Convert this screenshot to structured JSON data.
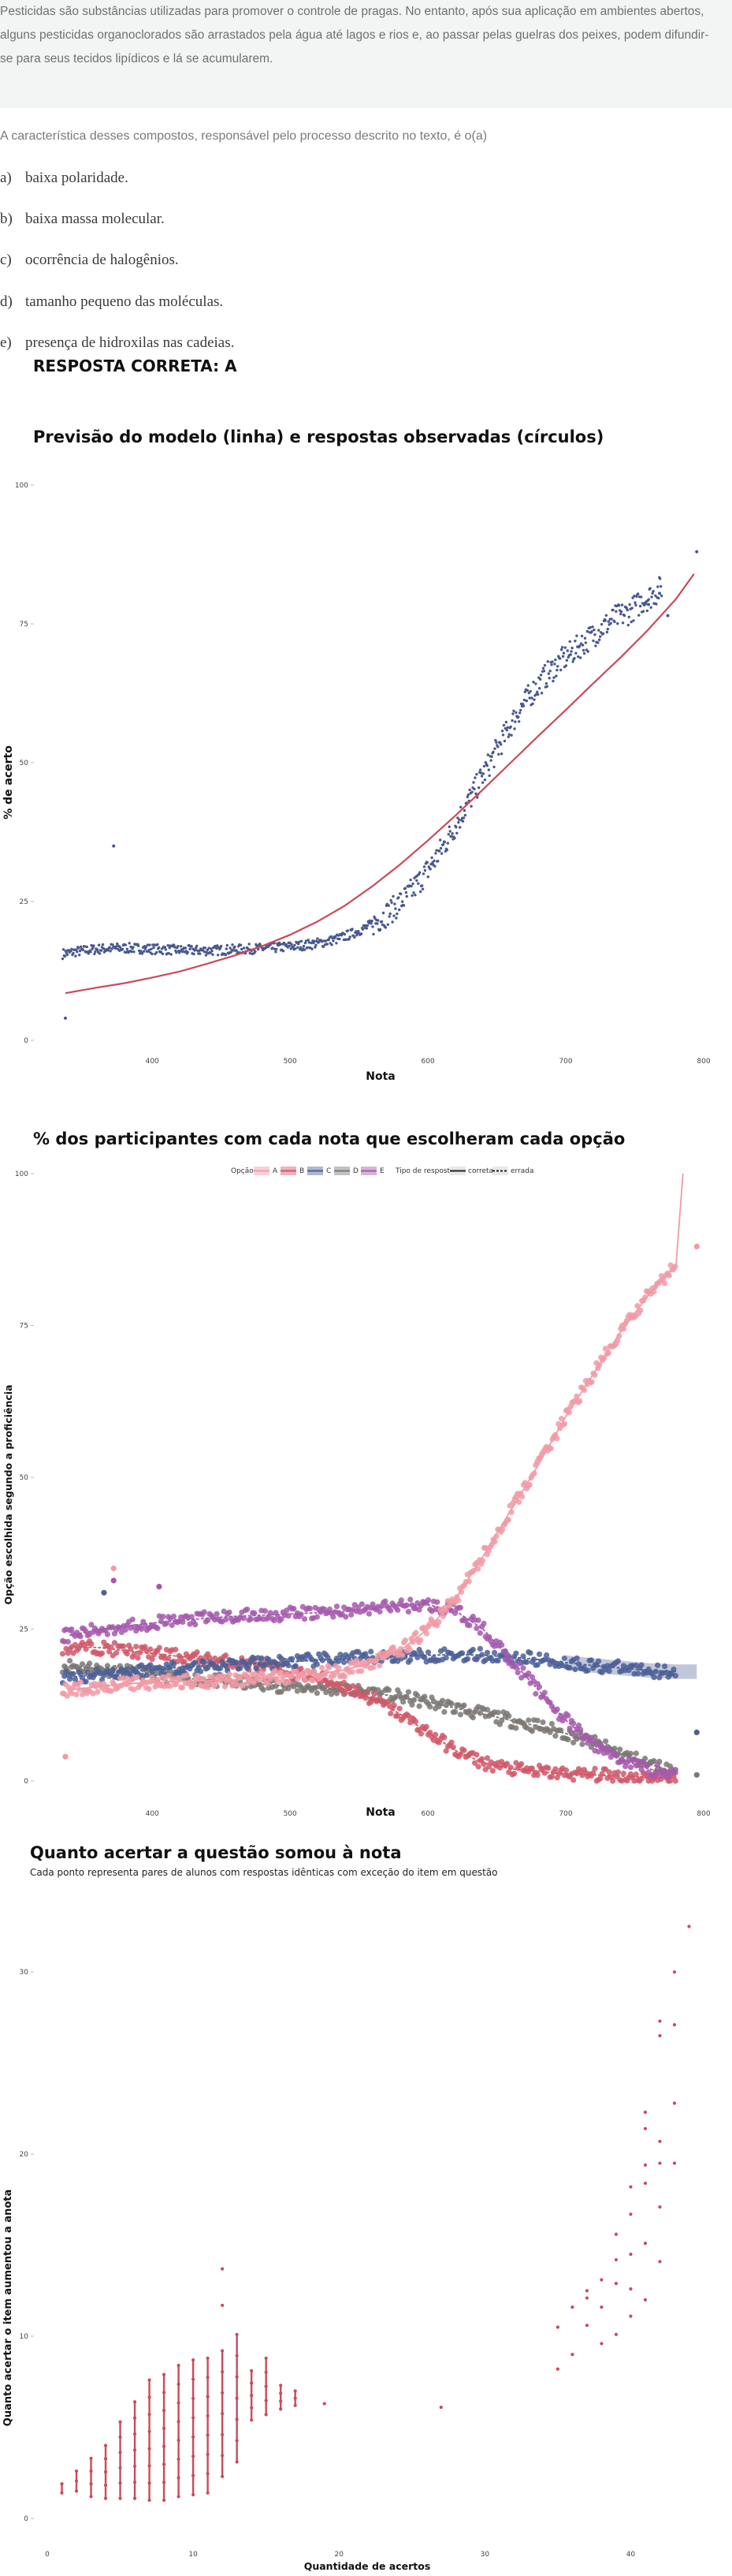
{
  "question": {
    "stem_lines": [
      "Pesticidas são substâncias utilizadas para promover o controle de pragas. No entanto, após sua aplicação em ambientes abertos,",
      "alguns pesticidas organoclorados são arrastados pela água até lagos e rios e, ao passar pelas guelras dos peixes, podem difundir-",
      "se para seus tecidos lipídicos e lá se acumularem."
    ],
    "prompt": "A característica desses compostos, responsável pelo processo descrito no texto, é o(a)",
    "options": [
      {
        "letter": "a)",
        "text": "baixa polaridade."
      },
      {
        "letter": "b)",
        "text": "baixa massa molecular."
      },
      {
        "letter": "c)",
        "text": "ocorrência de halogênios."
      },
      {
        "letter": "d)",
        "text": "tamanho pequeno das moléculas."
      },
      {
        "letter": "e)",
        "text": "presença de hidroxilas nas cadeias."
      }
    ],
    "correct_answer": "RESPOSTA CORRETA: A"
  },
  "colors": {
    "A": "#f19aa5",
    "B": "#d05868",
    "C": "#4c5f97",
    "D": "#7b7774",
    "E": "#a559ad",
    "model": "#c94b5a",
    "points": "#49588f"
  },
  "chart_data": [
    {
      "type": "scatter",
      "title": "Previsão do modelo (linha) e respostas observadas (círculos)",
      "xlabel": "Nota",
      "ylabel": "% de acerto",
      "xlim": [
        325,
        800
      ],
      "ylim": [
        0,
        100
      ],
      "xticks": [
        "400",
        "500",
        "600",
        "700",
        "800"
      ],
      "yticks": [
        "0",
        "25",
        "50",
        "75",
        "100"
      ],
      "observed": {
        "x": [
          333,
          345,
          355,
          365,
          375,
          385,
          395,
          405,
          415,
          425,
          435,
          445,
          455,
          465,
          475,
          485,
          495,
          505,
          515,
          525,
          535,
          545,
          555,
          565,
          575,
          585,
          595,
          605,
          615,
          625,
          635,
          645,
          655,
          665,
          675,
          685,
          695,
          705,
          715,
          725,
          735,
          745,
          755,
          765,
          795
        ],
        "y": [
          15.5,
          16.0,
          16.3,
          16.5,
          16.6,
          16.6,
          16.5,
          16.4,
          16.3,
          16.2,
          16.2,
          16.2,
          16.3,
          16.4,
          16.5,
          16.6,
          16.8,
          17.0,
          17.3,
          17.7,
          18.3,
          19.2,
          20.3,
          21.8,
          23.7,
          26.0,
          29.0,
          32.5,
          36.5,
          41.0,
          45.5,
          50.0,
          54.5,
          59.0,
          62.5,
          65.5,
          68.0,
          70.0,
          72.0,
          74.0,
          76.0,
          77.0,
          79.0,
          80.5,
          88.0
        ]
      },
      "outliers": {
        "x": [
          337,
          372
        ],
        "y": [
          4,
          35
        ]
      },
      "model": {
        "x": [
          337,
          360,
          380,
          400,
          420,
          440,
          460,
          480,
          500,
          520,
          540,
          560,
          580,
          600,
          620,
          640,
          660,
          680,
          700,
          720,
          740,
          760,
          780,
          793
        ],
        "y": [
          8.5,
          9.5,
          10.3,
          11.3,
          12.4,
          13.8,
          15.3,
          17.0,
          19.0,
          21.4,
          24.3,
          27.8,
          31.7,
          36.0,
          40.5,
          45.2,
          50.0,
          54.8,
          59.5,
          64.3,
          69.0,
          74.0,
          79.5,
          84.0
        ]
      }
    },
    {
      "type": "scatter",
      "title": "% dos participantes com cada nota que escolheram cada opção",
      "xlabel": "Nota",
      "ylabel": "Opção escolhida segundo a proficiência",
      "xlim": [
        325,
        800
      ],
      "ylim": [
        0,
        100
      ],
      "xticks": [
        "400",
        "500",
        "600",
        "700",
        "800"
      ],
      "yticks": [
        "0",
        "25",
        "50",
        "75",
        "100"
      ],
      "legend": {
        "option_title": "Opção",
        "option_labels": [
          "A",
          "B",
          "C",
          "D",
          "E"
        ],
        "type_title": "Tipo de resposta",
        "type_labels": [
          "correta",
          "errada"
        ],
        "placement": "top"
      },
      "x": [
        340,
        360,
        380,
        400,
        420,
        440,
        460,
        480,
        500,
        520,
        540,
        560,
        580,
        600,
        620,
        640,
        660,
        680,
        700,
        720,
        740,
        760,
        780
      ],
      "series": [
        {
          "name": "A",
          "y": [
            15,
            15.5,
            16,
            16.2,
            16.4,
            16.5,
            16.7,
            16.9,
            17.2,
            17.6,
            18.3,
            19.5,
            21.5,
            25,
            30,
            37,
            44.5,
            52,
            60,
            67,
            74,
            80,
            85
          ]
        },
        {
          "name": "B",
          "y": [
            22,
            22,
            21.5,
            21,
            20.5,
            20,
            19.5,
            19,
            18,
            17,
            15.5,
            13.5,
            11,
            8,
            5,
            3,
            2,
            1.5,
            1.2,
            1,
            0.8,
            0.6,
            0.5
          ]
        },
        {
          "name": "C",
          "y": [
            17,
            17.6,
            18,
            18.4,
            18.7,
            19,
            19.2,
            19.4,
            19.6,
            19.9,
            20.1,
            20.3,
            20.5,
            20.7,
            20.8,
            20.7,
            20.4,
            20,
            19.5,
            19,
            18.6,
            18.2,
            18
          ]
        },
        {
          "name": "D",
          "y": [
            19,
            18.5,
            18,
            17.5,
            17,
            16.6,
            16.2,
            15.9,
            15.6,
            15.3,
            15,
            14.5,
            13.8,
            13,
            12,
            11,
            10,
            9,
            7.8,
            6.3,
            4.5,
            2.8,
            1.5
          ]
        },
        {
          "name": "E",
          "y": [
            24,
            24.8,
            25.5,
            26,
            26.4,
            26.8,
            27.1,
            27.3,
            27.5,
            27.7,
            28,
            28.4,
            28.9,
            29,
            28,
            25,
            20,
            15,
            10,
            6,
            3.5,
            2,
            1
          ]
        }
      ],
      "ci_series": "C"
    },
    {
      "type": "scatter",
      "title": "Quanto acertar a questão somou à nota",
      "subtitle": "Cada ponto representa pares de alunos com respostas idênticas com exceção do item em questão",
      "xlabel": "Quantidade de acertos",
      "ylabel": "Quanto acertar o item aumentou a anota",
      "xlim": [
        0,
        45
      ],
      "ylim": [
        0,
        32
      ],
      "xticks": [
        "0",
        "10",
        "20",
        "30",
        "40"
      ],
      "yticks": [
        "0",
        "10",
        "20",
        "30"
      ],
      "groups": [
        {
          "x": 1,
          "ymin": 1.4,
          "ymax": 1.9,
          "n": 2
        },
        {
          "x": 2,
          "ymin": 1.5,
          "ymax": 2.6,
          "n": 3
        },
        {
          "x": 3,
          "ymin": 1.2,
          "ymax": 3.3,
          "n": 4
        },
        {
          "x": 4,
          "ymin": 1.1,
          "ymax": 4.0,
          "n": 5
        },
        {
          "x": 5,
          "ymin": 1.1,
          "ymax": 5.3,
          "n": 6
        },
        {
          "x": 6,
          "ymin": 1.1,
          "ymax": 6.4,
          "n": 7
        },
        {
          "x": 7,
          "ymin": 1.0,
          "ymax": 7.6,
          "n": 8
        },
        {
          "x": 8,
          "ymin": 1.0,
          "ymax": 7.9,
          "n": 8
        },
        {
          "x": 9,
          "ymin": 1.2,
          "ymax": 8.4,
          "n": 8
        },
        {
          "x": 10,
          "ymin": 1.3,
          "ymax": 8.7,
          "n": 8
        },
        {
          "x": 11,
          "ymin": 1.4,
          "ymax": 8.8,
          "n": 8
        },
        {
          "x": 12,
          "ymin": 2.3,
          "ymax": 9.2,
          "n": 7
        },
        {
          "x": 13,
          "ymin": 3.1,
          "ymax": 10.1,
          "n": 7
        },
        {
          "x": 14,
          "ymin": 5.4,
          "ymax": 8.1,
          "n": 5
        },
        {
          "x": 15,
          "ymin": 5.7,
          "ymax": 8.8,
          "n": 5
        },
        {
          "x": 16,
          "ymin": 6.0,
          "ymax": 7.3,
          "n": 4
        },
        {
          "x": 17,
          "ymin": 6.2,
          "ymax": 7.0,
          "n": 3
        }
      ],
      "points": {
        "x": [
          12,
          12,
          19,
          27,
          35,
          35,
          36,
          36,
          37,
          37,
          37,
          38,
          38,
          38,
          39,
          39,
          39,
          39,
          40,
          40,
          40,
          40,
          40,
          41,
          41,
          41,
          41,
          41,
          41,
          42,
          42,
          42,
          42,
          42,
          43,
          43
        ],
        "y": [
          13.7,
          11.7,
          6.3,
          6.1,
          8.2,
          10.5,
          9.0,
          11.6,
          10.6,
          12.1,
          12.5,
          9.6,
          11.6,
          13.1,
          10.1,
          12.9,
          14.2,
          15.6,
          11.1,
          12.6,
          14.5,
          16.7,
          18.2,
          12.0,
          15.1,
          18.4,
          19.4,
          21.4,
          22.3,
          14.1,
          17.1,
          19.5,
          27.3,
          26.5,
          22.8,
          30.0
        ],
        "extra_x": [
          42,
          43,
          43,
          44
        ],
        "extra_y": [
          20.7,
          19.5,
          27.1,
          32.5
        ]
      }
    }
  ]
}
